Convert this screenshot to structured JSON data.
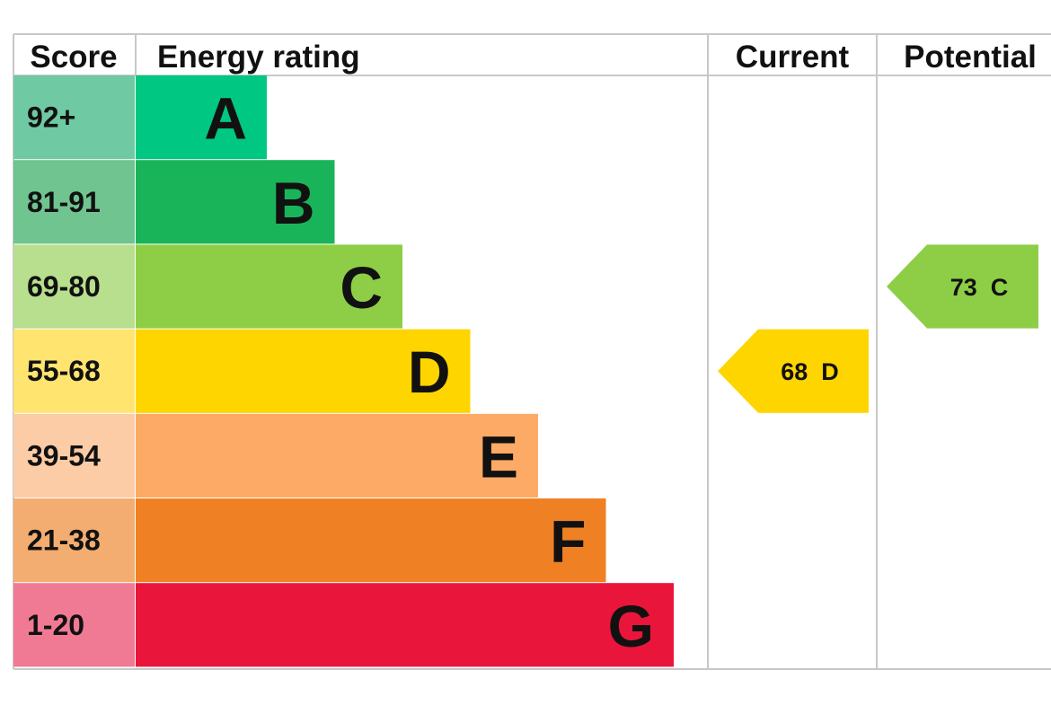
{
  "chart_data": {
    "type": "table",
    "headers": {
      "score": "Score",
      "rating": "Energy rating",
      "current": "Current",
      "potential": "Potential"
    },
    "bands": [
      {
        "score": "92+",
        "letter": "A",
        "color": "#00c781",
        "score_bg": "#6fcaa3"
      },
      {
        "score": "81-91",
        "letter": "B",
        "color": "#19b459",
        "score_bg": "#70c48f"
      },
      {
        "score": "69-80",
        "letter": "C",
        "color": "#8dce46",
        "score_bg": "#b7df8e"
      },
      {
        "score": "55-68",
        "letter": "D",
        "color": "#ffd500",
        "score_bg": "#ffe46f"
      },
      {
        "score": "39-54",
        "letter": "E",
        "color": "#fcaa65",
        "score_bg": "#fccca6"
      },
      {
        "score": "21-38",
        "letter": "F",
        "color": "#ef8023",
        "score_bg": "#f3ad70"
      },
      {
        "score": "1-20",
        "letter": "G",
        "color": "#e9153b",
        "score_bg": "#f07a93"
      }
    ],
    "current": {
      "value": 68,
      "band": "D",
      "label": "68  D",
      "color": "#ffd500"
    },
    "potential": {
      "value": 73,
      "band": "C",
      "label": "73  C",
      "color": "#8dce46"
    }
  }
}
